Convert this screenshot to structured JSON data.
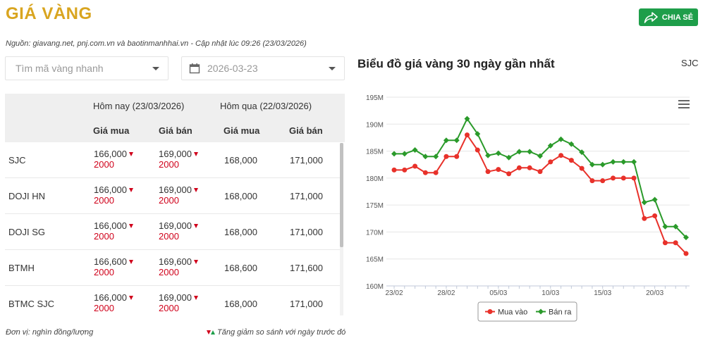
{
  "header": {
    "title": "GIÁ VÀNG",
    "share_label": "CHIA SẺ"
  },
  "source_text": "Nguồn: giavang.net, pnj.com.vn và baotinmanhhai.vn - Cập nhật lúc 09:26 (23/03/2026)",
  "filters": {
    "search_placeholder": "Tìm mã vàng nhanh",
    "date_value": "2026-03-23"
  },
  "table": {
    "today_header": "Hôm nay (23/03/2026)",
    "yesterday_header": "Hôm qua (22/03/2026)",
    "col_buy": "Giá mua",
    "col_sell": "Giá bán",
    "rows": [
      {
        "name": "SJC",
        "buy": "166,000",
        "buy_chg": "2000",
        "sell": "169,000",
        "sell_chg": "2000",
        "y_buy": "168,000",
        "y_sell": "171,000"
      },
      {
        "name": "DOJI HN",
        "buy": "166,000",
        "buy_chg": "2000",
        "sell": "169,000",
        "sell_chg": "2000",
        "y_buy": "168,000",
        "y_sell": "171,000"
      },
      {
        "name": "DOJI SG",
        "buy": "166,000",
        "buy_chg": "2000",
        "sell": "169,000",
        "sell_chg": "2000",
        "y_buy": "168,000",
        "y_sell": "171,000"
      },
      {
        "name": "BTMH",
        "buy": "166,600",
        "buy_chg": "2000",
        "sell": "169,600",
        "sell_chg": "2000",
        "y_buy": "168,600",
        "y_sell": "171,600"
      },
      {
        "name": "BTMC SJC",
        "buy": "166,000",
        "buy_chg": "2000",
        "sell": "169,000",
        "sell_chg": "2000",
        "y_buy": "168,000",
        "y_sell": "171,000"
      }
    ]
  },
  "footer": {
    "unit_note": "Đơn vị: nghìn đồng/lượng",
    "change_note": "Tăng giảm so sánh với ngày trước đó"
  },
  "chart": {
    "title": "Biểu đồ giá vàng 30 ngày gần nhất",
    "code": "SJC"
  },
  "colors": {
    "brand_gold": "#d9a520",
    "buy_line": "#e8312a",
    "sell_line": "#2a9a2a",
    "share_button": "#1e9e4a",
    "decrease": "#d0021b"
  },
  "chart_data": {
    "type": "line",
    "ylim": [
      160,
      195
    ],
    "yticks": [
      160,
      165,
      170,
      175,
      180,
      185,
      190,
      195
    ],
    "ytick_labels": [
      "160M",
      "165M",
      "170M",
      "175M",
      "180M",
      "185M",
      "190M",
      "195M"
    ],
    "xtick_labels": [
      {
        "label": "23/02",
        "index": 0
      },
      {
        "label": "28/02",
        "index": 5
      },
      {
        "label": "05/03",
        "index": 10
      },
      {
        "label": "10/03",
        "index": 15
      },
      {
        "label": "15/03",
        "index": 20
      },
      {
        "label": "20/03",
        "index": 25
      }
    ],
    "n_points": 29,
    "legend_position": "bottom-center",
    "series": [
      {
        "name": "Mua vào",
        "color": "#e8312a",
        "marker": "circle",
        "values": [
          181.5,
          181.5,
          182.2,
          181.0,
          181.0,
          184.0,
          184.0,
          188.0,
          185.2,
          181.2,
          181.6,
          180.8,
          181.9,
          181.9,
          181.2,
          183.0,
          184.2,
          183.3,
          181.8,
          179.5,
          179.5,
          180.0,
          180.0,
          180.0,
          172.5,
          173.0,
          168.0,
          168.0,
          166.0
        ]
      },
      {
        "name": "Bán ra",
        "color": "#2a9a2a",
        "marker": "diamond",
        "values": [
          184.5,
          184.5,
          185.2,
          184.0,
          184.0,
          187.0,
          187.0,
          191.0,
          188.2,
          184.2,
          184.6,
          183.8,
          184.9,
          184.9,
          184.1,
          186.0,
          187.2,
          186.3,
          184.8,
          182.5,
          182.5,
          183.0,
          183.0,
          183.0,
          175.5,
          176.0,
          171.0,
          171.0,
          169.0
        ]
      }
    ]
  }
}
